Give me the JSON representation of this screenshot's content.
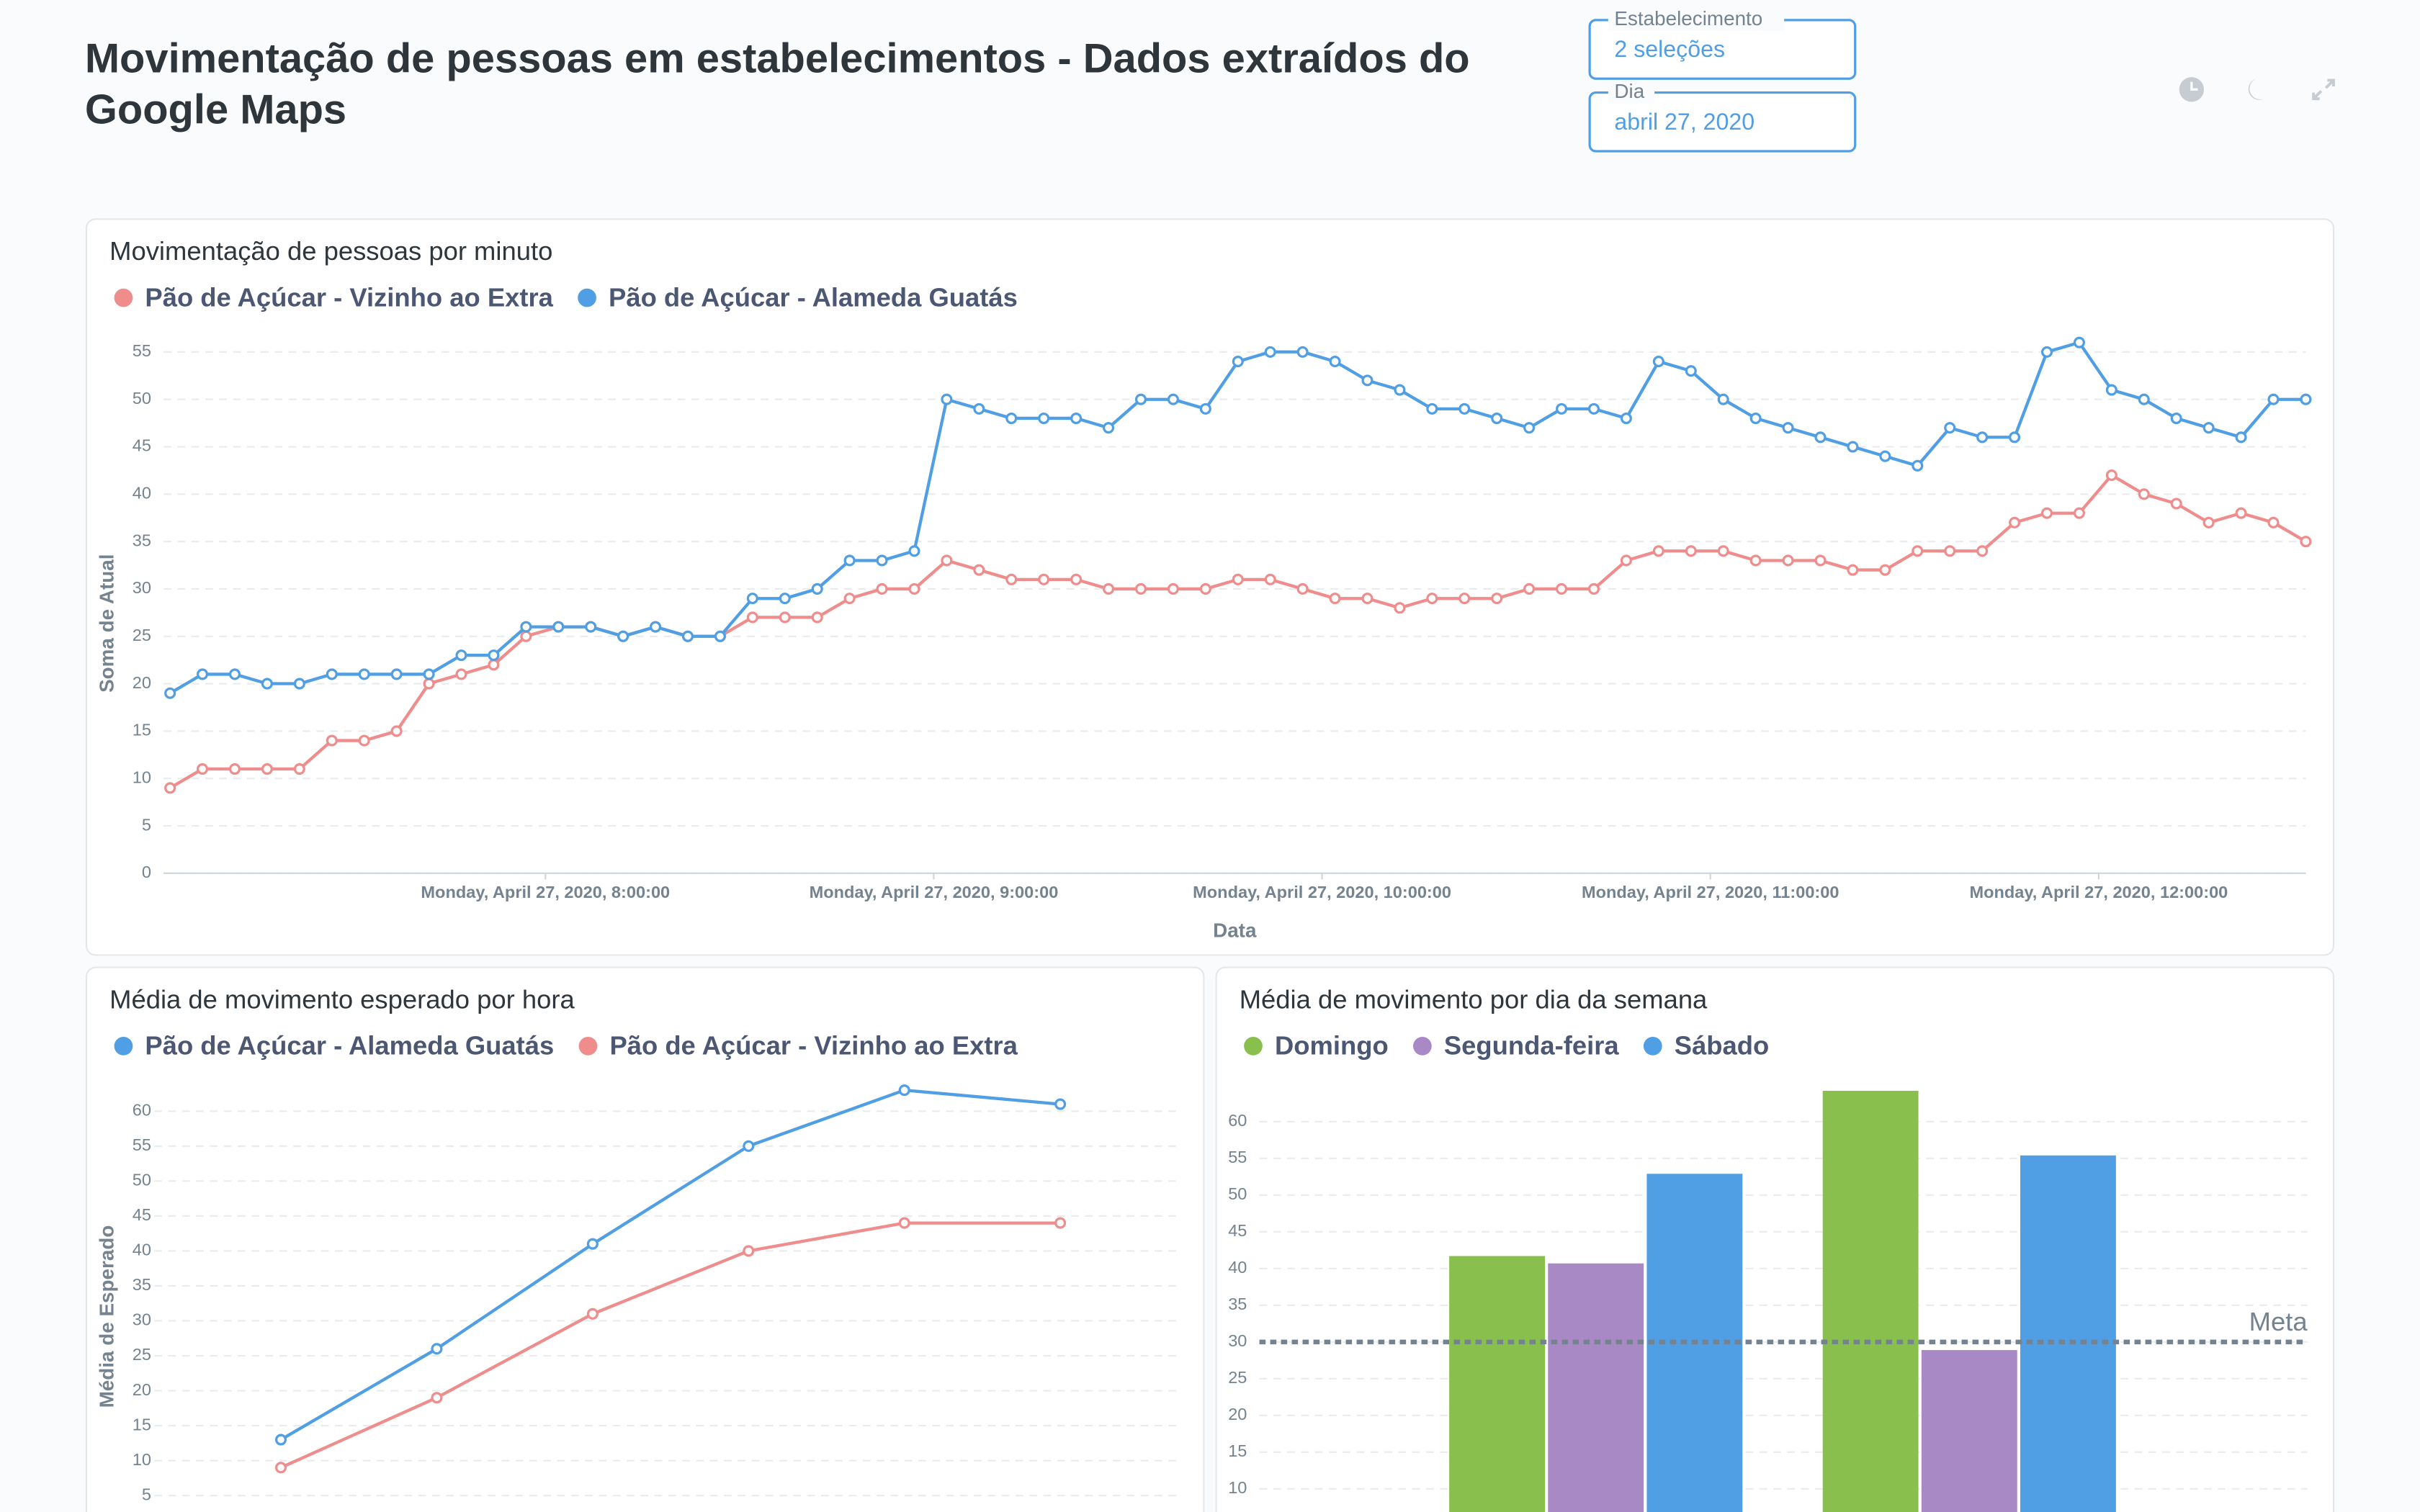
{
  "header": {
    "title": "Movimentação de pessoas em estabelecimentos - Dados extraídos do Google Maps",
    "filters": [
      {
        "label": "Estabelecimento",
        "value": "2 seleções"
      },
      {
        "label": "Dia",
        "value": "abril 27, 2020"
      }
    ]
  },
  "chart_data": [
    {
      "type": "line",
      "title": "Movimentação de pessoas por minuto",
      "x": [
        "07:02",
        "07:07",
        "07:12",
        "07:17",
        "07:22",
        "07:27",
        "07:32",
        "07:37",
        "07:42",
        "07:47",
        "07:52",
        "07:57",
        "08:02",
        "08:07",
        "08:12",
        "08:17",
        "08:22",
        "08:27",
        "08:32",
        "08:37",
        "08:42",
        "08:47",
        "08:52",
        "08:57",
        "09:02",
        "09:07",
        "09:12",
        "09:17",
        "09:22",
        "09:27",
        "09:32",
        "09:37",
        "09:42",
        "09:47",
        "09:52",
        "09:57",
        "10:02",
        "10:07",
        "10:12",
        "10:17",
        "10:22",
        "10:27",
        "10:32",
        "10:37",
        "10:42",
        "10:47",
        "10:52",
        "10:57",
        "11:02",
        "11:07",
        "11:12",
        "11:17",
        "11:22",
        "11:27",
        "11:32",
        "11:37",
        "11:42",
        "11:47",
        "11:52",
        "11:57",
        "12:02",
        "12:07",
        "12:12",
        "12:17",
        "12:22",
        "12:27",
        "12:32"
      ],
      "series": [
        {
          "name": "Pão de Açúcar - Vizinho ao Extra",
          "color": "#ef8c8c",
          "values": [
            9,
            11,
            11,
            11,
            11,
            14,
            14,
            15,
            20,
            21,
            22,
            25,
            26,
            26,
            25,
            26,
            25,
            25,
            27,
            27,
            27,
            29,
            30,
            30,
            33,
            32,
            31,
            31,
            31,
            30,
            30,
            30,
            30,
            31,
            31,
            30,
            29,
            29,
            28,
            29,
            29,
            29,
            30,
            30,
            30,
            33,
            34,
            34,
            34,
            33,
            33,
            33,
            32,
            32,
            34,
            34,
            34,
            37,
            38,
            38,
            42,
            40,
            39,
            37,
            38,
            37,
            35
          ]
        },
        {
          "name": "Pão de Açúcar - Alameda Guatás",
          "color": "#509ee3",
          "values": [
            19,
            21,
            21,
            20,
            20,
            21,
            21,
            21,
            21,
            23,
            23,
            26,
            26,
            26,
            25,
            26,
            25,
            25,
            29,
            29,
            30,
            33,
            33,
            34,
            50,
            49,
            48,
            48,
            48,
            47,
            50,
            50,
            49,
            54,
            55,
            55,
            54,
            52,
            51,
            49,
            49,
            48,
            47,
            49,
            49,
            48,
            54,
            53,
            50,
            48,
            47,
            46,
            45,
            44,
            43,
            47,
            46,
            46,
            55,
            56,
            51,
            50,
            48,
            47,
            46,
            50,
            50
          ]
        }
      ],
      "xlabel": "Data",
      "ylabel": "Soma de Atual",
      "xlim": [
        "07:01",
        "12:32"
      ],
      "xticks": [
        {
          "value": "08:00",
          "label": "Monday, April 27, 2020, 8:00:00"
        },
        {
          "value": "09:00",
          "label": "Monday, April 27, 2020, 9:00:00"
        },
        {
          "value": "10:00",
          "label": "Monday, April 27, 2020, 10:00:00"
        },
        {
          "value": "11:00",
          "label": "Monday, April 27, 2020, 11:00:00"
        },
        {
          "value": "12:00",
          "label": "Monday, April 27, 2020, 12:00:00"
        }
      ],
      "ylim": [
        0,
        56
      ],
      "yticks": [
        0,
        5,
        10,
        15,
        20,
        25,
        30,
        35,
        40,
        45,
        50,
        55
      ],
      "grid": true
    },
    {
      "type": "line",
      "title": "Média de movimento esperado por hora",
      "categories": [
        null,
        null,
        null,
        null,
        null,
        null
      ],
      "series": [
        {
          "name": "Pão de Açúcar - Alameda Guatás",
          "color": "#509ee3",
          "values": [
            13,
            26,
            41,
            55,
            63,
            61
          ]
        },
        {
          "name": "Pão de Açúcar - Vizinho ao Extra",
          "color": "#ef8c8c",
          "values": [
            9,
            19,
            31,
            40,
            44,
            44
          ]
        }
      ],
      "ylabel": "Média de Esperado",
      "ylim": [
        0,
        63
      ],
      "yticks": [
        5,
        10,
        15,
        20,
        25,
        30,
        35,
        40,
        45,
        50,
        55,
        60
      ],
      "grid": true
    },
    {
      "type": "bar",
      "title": "Média de movimento por dia da semana",
      "categories": [
        null,
        null
      ],
      "series": [
        {
          "name": "Domingo",
          "color": "#88bf4d",
          "values": [
            41.7,
            64.2
          ]
        },
        {
          "name": "Segunda-feira",
          "color": "#a989c5",
          "values": [
            40.7,
            28.9
          ]
        },
        {
          "name": "Sábado",
          "color": "#509ee3",
          "values": [
            52.9,
            55.4
          ]
        }
      ],
      "ylim": [
        0,
        65
      ],
      "yticks": [
        10,
        15,
        20,
        25,
        30,
        35,
        40,
        45,
        50,
        55,
        60
      ],
      "grid": true,
      "goal": 30,
      "goal_label": "Meta"
    }
  ]
}
